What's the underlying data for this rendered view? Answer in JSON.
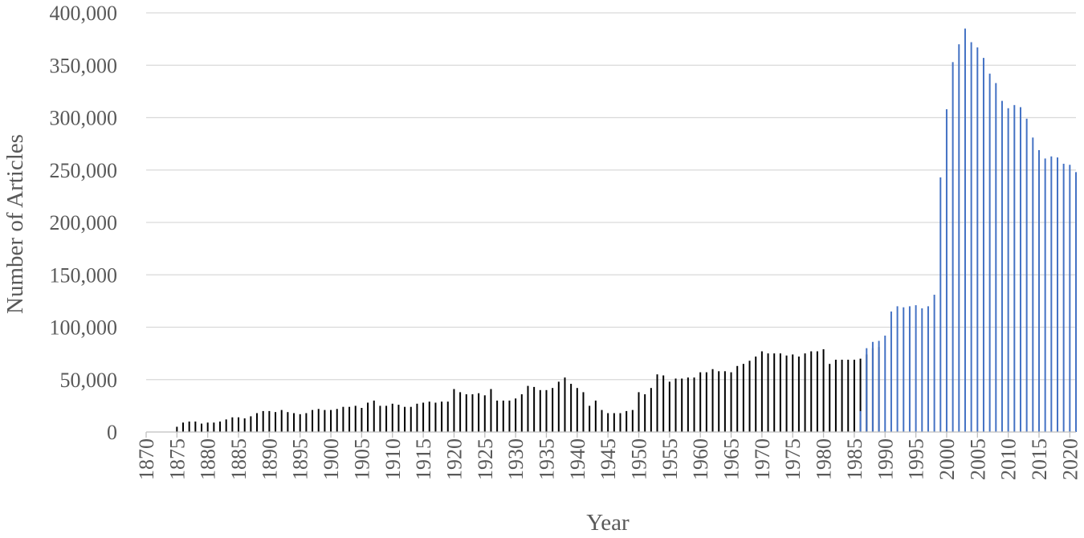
{
  "chart_data": {
    "type": "bar",
    "title": "",
    "xlabel": "Year",
    "ylabel": "Number of Articles",
    "xlim": [
      1870,
      2021
    ],
    "ylim": [
      0,
      400000
    ],
    "y_ticks": [
      0,
      50000,
      100000,
      150000,
      200000,
      250000,
      300000,
      350000,
      400000
    ],
    "y_tick_labels": [
      "0",
      "50,000",
      "100,000",
      "150,000",
      "200,000",
      "250,000",
      "300,000",
      "350,000",
      "400,000"
    ],
    "x_ticks": [
      1870,
      1875,
      1880,
      1885,
      1890,
      1895,
      1900,
      1905,
      1910,
      1915,
      1920,
      1925,
      1930,
      1935,
      1940,
      1945,
      1950,
      1955,
      1960,
      1965,
      1970,
      1975,
      1980,
      1985,
      1990,
      1995,
      2000,
      2005,
      2010,
      2015,
      2020
    ],
    "x_tick_labels": [
      "1870",
      "1875",
      "1880",
      "1885",
      "1890",
      "1895",
      "1900",
      "1905",
      "1910",
      "1915",
      "1920",
      "1925",
      "1930",
      "1935",
      "1940",
      "1945",
      "1950",
      "1955",
      "1960",
      "1965",
      "1970",
      "1975",
      "1980",
      "1985",
      "1990",
      "1995",
      "2000",
      "2005",
      "2010",
      "2015",
      "2020"
    ],
    "grid": true,
    "legend": "none",
    "series": [
      {
        "color": "#000000",
        "x": [
          1875,
          1876,
          1877,
          1878,
          1879,
          1880,
          1881,
          1882,
          1883,
          1884,
          1885,
          1886,
          1887,
          1888,
          1889,
          1890,
          1891,
          1892,
          1893,
          1894,
          1895,
          1896,
          1897,
          1898,
          1899,
          1900,
          1901,
          1902,
          1903,
          1904,
          1905,
          1906,
          1907,
          1908,
          1909,
          1910,
          1911,
          1912,
          1913,
          1914,
          1915,
          1916,
          1917,
          1918,
          1919,
          1920,
          1921,
          1922,
          1923,
          1924,
          1925,
          1926,
          1927,
          1928,
          1929,
          1930,
          1931,
          1932,
          1933,
          1934,
          1935,
          1936,
          1937,
          1938,
          1939,
          1940,
          1941,
          1942,
          1943,
          1944,
          1945,
          1946,
          1947,
          1948,
          1949,
          1950,
          1951,
          1952,
          1953,
          1954,
          1955,
          1956,
          1957,
          1958,
          1959,
          1960,
          1961,
          1962,
          1963,
          1964,
          1965,
          1966,
          1967,
          1968,
          1969,
          1970,
          1971,
          1972,
          1973,
          1974,
          1975,
          1976,
          1977,
          1978,
          1979,
          1980,
          1981,
          1982,
          1983,
          1984,
          1985,
          1986,
          1987,
          1988,
          1989
        ],
        "values": [
          5000,
          9000,
          10000,
          10000,
          8000,
          9000,
          9000,
          10000,
          12000,
          14000,
          14000,
          13000,
          15000,
          18000,
          20000,
          20000,
          19000,
          21000,
          19000,
          18000,
          17000,
          18000,
          21000,
          22000,
          21000,
          21000,
          22000,
          24000,
          24000,
          25000,
          23000,
          28000,
          30000,
          25000,
          25000,
          27000,
          26000,
          24000,
          24000,
          27000,
          28000,
          29000,
          28000,
          29000,
          29000,
          41000,
          38000,
          36000,
          36000,
          37000,
          35000,
          41000,
          30000,
          30000,
          30000,
          32000,
          36000,
          44000,
          43000,
          40000,
          40000,
          42000,
          48000,
          52000,
          46000,
          42000,
          38000,
          25000,
          30000,
          21000,
          18000,
          18000,
          18000,
          20000,
          21000,
          38000,
          36000,
          42000,
          55000,
          54000,
          48000,
          51000,
          51000,
          52000,
          52000,
          57000,
          57000,
          60000,
          58000,
          58000,
          57000,
          63000,
          65000,
          68000,
          72000,
          77000,
          75000,
          75000,
          75000,
          73000,
          74000,
          72000,
          75000,
          77000,
          77000,
          79000,
          65000,
          69000,
          69000,
          69000,
          69000,
          70000,
          74000,
          80000,
          81000
        ]
      },
      {
        "color": "#4472c4",
        "x": [
          1986,
          1987,
          1988,
          1989,
          1990,
          1991,
          1992,
          1993,
          1994,
          1995,
          1996,
          1997,
          1998,
          1999,
          2000,
          2001,
          2002,
          2003,
          2004,
          2005,
          2006,
          2007,
          2008,
          2009,
          2010,
          2011,
          2012,
          2013,
          2014,
          2015,
          2016,
          2017,
          2018,
          2019,
          2020,
          2021
        ],
        "values": [
          20000,
          80000,
          86000,
          87000,
          92000,
          115000,
          120000,
          119000,
          120000,
          121000,
          118000,
          120000,
          131000,
          243000,
          308000,
          353000,
          370000,
          385000,
          372000,
          367000,
          357000,
          342000,
          333000,
          316000,
          309000,
          312000,
          310000,
          299000,
          281000,
          269000,
          261000,
          263000,
          262000,
          256000,
          255000,
          248000
        ]
      }
    ]
  }
}
